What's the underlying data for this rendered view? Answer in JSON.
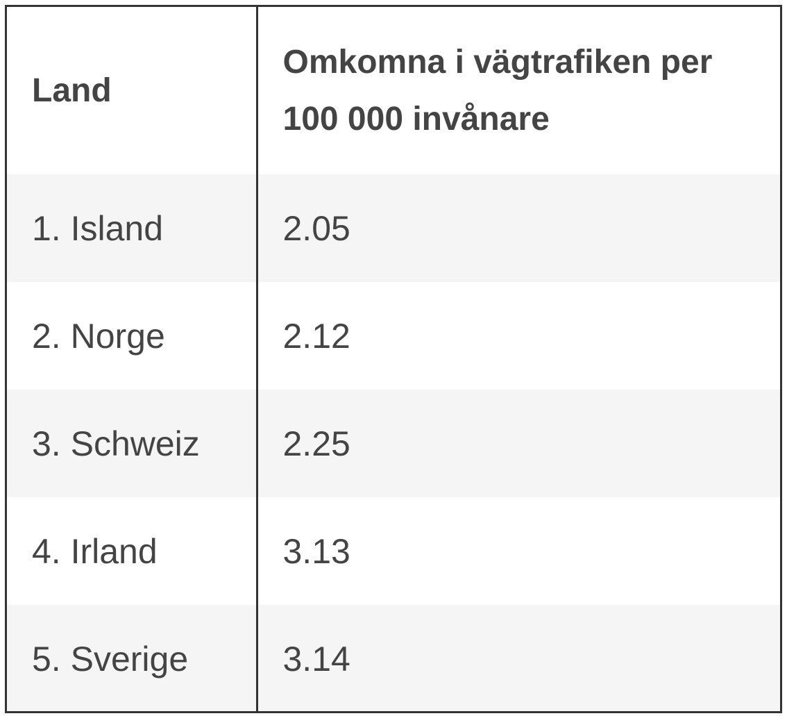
{
  "table": {
    "header": [
      "Land",
      "Omkomna i vägtrafiken per 100 000 invånare"
    ],
    "rows": [
      [
        "1. Island",
        "2.05"
      ],
      [
        "2. Norge",
        "2.12"
      ],
      [
        "3. Schweiz",
        "2.25"
      ],
      [
        "4. Irland",
        "3.13"
      ],
      [
        "5. Sverige",
        "3.14"
      ]
    ]
  }
}
